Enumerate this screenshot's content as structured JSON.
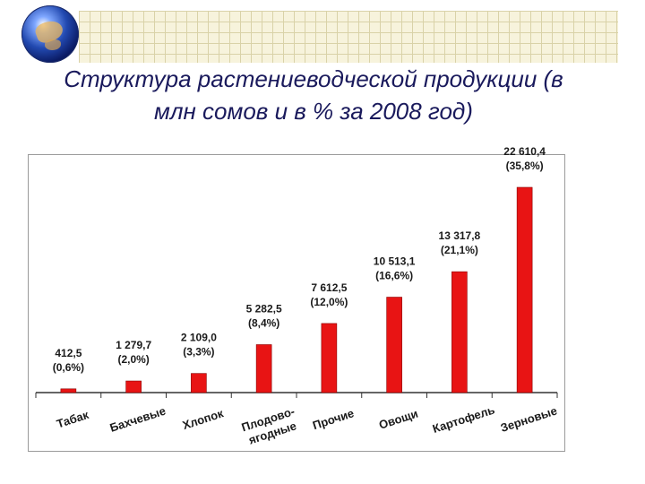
{
  "slide": {
    "title_line1": "Структура растениеводческой продукции (в",
    "title_line2": "млн сомов и в % за 2008 год)"
  },
  "colors": {
    "bar": "#e81414",
    "bar_edge": "#8a0000",
    "axis": "#333333",
    "title": "#1a1a5c"
  },
  "chart_data": {
    "type": "bar",
    "title": "Структура растениеводческой продукции (в млн сомов и в % за 2008 год)",
    "categories": [
      "Табак",
      "Бахчевые",
      "Хлопок",
      "Плодово-ягодные",
      "Прочие",
      "Овощи",
      "Картофель",
      "Зерновые"
    ],
    "category_lines": [
      [
        "Табак"
      ],
      [
        "Бахчевые"
      ],
      [
        "Хлопок"
      ],
      [
        "Плодово-",
        "ягодные"
      ],
      [
        "Прочие"
      ],
      [
        "Овощи"
      ],
      [
        "Картофель"
      ],
      [
        "Зерновые"
      ]
    ],
    "values": [
      412.5,
      1279.7,
      2109.0,
      5282.5,
      7612.5,
      10513.1,
      13317.8,
      22610.4
    ],
    "label_values": [
      "412,5",
      "1 279,7",
      "2 109,0",
      "5 282,5",
      "7 612,5",
      "10 513,1",
      "13 317,8",
      "22 610,4"
    ],
    "label_percents": [
      "(0,6%)",
      "(2,0%)",
      "(3,3%)",
      "(8,4%)",
      "(12,0%)",
      "(16,6%)",
      "(21,1%)",
      "(35,8%)"
    ],
    "percents": [
      0.6,
      2.0,
      3.3,
      8.4,
      12.0,
      16.6,
      21.1,
      35.8
    ],
    "ylim": [
      0,
      23500
    ],
    "grid": false,
    "legend": "none",
    "xlabel": "",
    "ylabel": ""
  }
}
